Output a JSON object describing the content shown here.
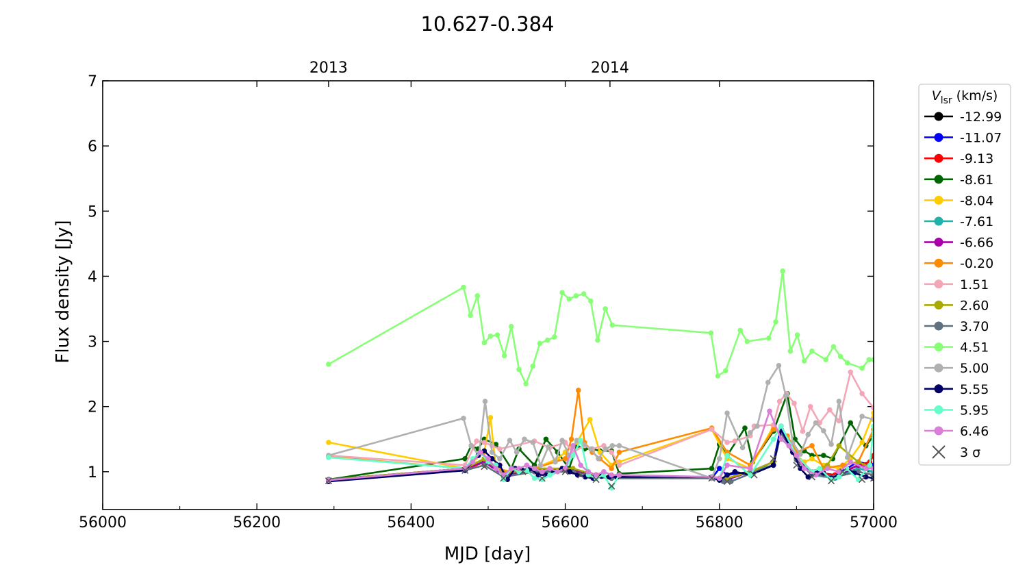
{
  "chart_data": {
    "type": "line",
    "title": "10.627-0.384",
    "xlabel": "MJD [day]",
    "ylabel": "Flux density [Jy]",
    "xlim": [
      56000,
      57000
    ],
    "ylim": [
      0.42,
      7
    ],
    "x_ticks": [
      56000,
      56200,
      56400,
      56600,
      56800,
      57000
    ],
    "x_tick_labels": [
      "56000",
      "56200",
      "56400",
      "56600",
      "56800",
      "57000"
    ],
    "y_ticks": [
      1,
      2,
      3,
      4,
      5,
      6,
      7
    ],
    "y_tick_labels": [
      "1",
      "2",
      "3",
      "4",
      "5",
      "6",
      "7"
    ],
    "top_axis_ticks": [
      {
        "x": 56293,
        "label": "2013"
      },
      {
        "x": 56658,
        "label": "2014"
      }
    ],
    "grid": false,
    "legend": {
      "placement": "outside-right",
      "title_main": "V",
      "title_sub": "lsr",
      "title_unit": "(km/s)",
      "sigma_label": "3 σ"
    },
    "series": [
      {
        "name": "-12.99",
        "color": "#000000",
        "x": [
          56293,
          56470,
          56495,
          56520,
          56560,
          56610,
          56640,
          56660,
          56790,
          56810,
          56840,
          56870,
          56880,
          56900,
          56920,
          56950,
          56980,
          57000
        ],
        "y": [
          0.88,
          1.05,
          1.15,
          0.95,
          1.02,
          1.0,
          0.95,
          0.92,
          0.92,
          0.88,
          1.0,
          1.1,
          1.65,
          1.2,
          0.98,
          0.92,
          1.05,
          1.0
        ]
      },
      {
        "name": "-11.07",
        "color": "#0000ff",
        "x": [
          56293,
          56470,
          56495,
          56520,
          56560,
          56610,
          56640,
          56660,
          56790,
          56800,
          56810,
          56840,
          56870,
          56880,
          56900,
          56920,
          56950,
          56980,
          57000
        ],
        "y": [
          0.87,
          1.05,
          1.2,
          0.95,
          1.05,
          1.0,
          0.95,
          0.92,
          0.9,
          1.05,
          0.95,
          1.0,
          1.15,
          1.7,
          1.25,
          1.0,
          0.95,
          1.15,
          1.1
        ]
      },
      {
        "name": "-9.13",
        "color": "#ff0000",
        "x": [
          56293,
          56470,
          56495,
          56520,
          56560,
          56610,
          56640,
          56660,
          56790,
          56810,
          56840,
          56870,
          56880,
          56900,
          56920,
          56950,
          56980,
          56995,
          57000
        ],
        "y": [
          0.87,
          1.03,
          1.15,
          0.95,
          1.0,
          1.0,
          0.95,
          0.92,
          0.9,
          0.9,
          1.0,
          1.1,
          1.6,
          1.2,
          1.0,
          0.95,
          1.1,
          1.15,
          1.25
        ]
      },
      {
        "name": "-8.61",
        "color": "#006400",
        "x": [
          56293,
          56470,
          56478,
          56487,
          56495,
          56510,
          56530,
          56540,
          56560,
          56575,
          56590,
          56605,
          56615,
          56625,
          56635,
          56645,
          56660,
          56670,
          56790,
          56800,
          56810,
          56833,
          56843,
          56870,
          56888,
          56898,
          56910,
          56920,
          56935,
          56947,
          56970,
          56990,
          57000
        ],
        "y": [
          0.88,
          1.2,
          1.4,
          1.35,
          1.5,
          1.42,
          1.05,
          1.35,
          1.1,
          1.5,
          1.3,
          1.05,
          1.4,
          1.35,
          1.35,
          1.32,
          1.32,
          0.97,
          1.05,
          1.42,
          1.25,
          1.67,
          1.15,
          1.62,
          2.2,
          1.5,
          1.32,
          1.25,
          1.25,
          1.2,
          1.75,
          1.4,
          1.55
        ]
      },
      {
        "name": "-8.04",
        "color": "#ffcc00",
        "x": [
          56293,
          56470,
          56495,
          56503,
          56510,
          56530,
          56560,
          56590,
          56600,
          56615,
          56632,
          56645,
          56660,
          56670,
          56790,
          56810,
          56840,
          56870,
          56888,
          56900,
          56910,
          56920,
          56935,
          56955,
          56970,
          56985,
          57000
        ],
        "y": [
          1.45,
          1.05,
          1.3,
          1.83,
          1.05,
          1.0,
          1.05,
          1.2,
          1.3,
          1.45,
          1.8,
          1.3,
          1.1,
          1.15,
          1.65,
          1.2,
          1.05,
          1.7,
          1.45,
          1.25,
          1.15,
          1.2,
          1.1,
          1.05,
          1.2,
          1.45,
          1.9
        ]
      },
      {
        "name": "-7.61",
        "color": "#20b2aa",
        "x": [
          56293,
          56470,
          56495,
          56520,
          56560,
          56610,
          56640,
          56660,
          56790,
          56810,
          56840,
          56870,
          56880,
          56900,
          56920,
          56950,
          56980,
          57000
        ],
        "y": [
          0.88,
          1.03,
          1.18,
          0.95,
          1.02,
          1.02,
          0.95,
          0.9,
          0.9,
          0.88,
          1.0,
          1.1,
          1.65,
          1.2,
          0.95,
          0.9,
          1.05,
          1.0
        ]
      },
      {
        "name": "-6.66",
        "color": "#aa00aa",
        "x": [
          56293,
          56470,
          56495,
          56520,
          56560,
          56610,
          56640,
          56660,
          56790,
          56810,
          56840,
          56870,
          56880,
          56900,
          56920,
          56950,
          56980,
          57000
        ],
        "y": [
          0.87,
          1.05,
          1.15,
          0.95,
          1.03,
          1.02,
          0.95,
          0.9,
          0.9,
          0.88,
          1.0,
          1.15,
          1.6,
          1.2,
          0.98,
          0.92,
          1.1,
          1.05
        ]
      },
      {
        "name": "-0.20",
        "color": "#ff8c00",
        "x": [
          56293,
          56470,
          56495,
          56520,
          56560,
          56600,
          56608,
          56617,
          56625,
          56635,
          56645,
          56660,
          56670,
          56790,
          56810,
          56840,
          56870,
          56888,
          56900,
          56920,
          56935,
          56960,
          56980,
          57000
        ],
        "y": [
          1.23,
          1.05,
          1.2,
          1.0,
          1.05,
          1.2,
          1.5,
          2.25,
          1.45,
          1.3,
          1.2,
          1.05,
          1.3,
          1.67,
          1.3,
          1.1,
          1.65,
          1.55,
          1.3,
          1.4,
          1.05,
          1.1,
          1.15,
          1.65
        ]
      },
      {
        "name": "1.51",
        "color": "#f4a6b7",
        "x": [
          56293,
          56470,
          56485,
          56495,
          56505,
          56515,
          56560,
          56580,
          56600,
          56610,
          56625,
          56635,
          56650,
          56660,
          56670,
          56790,
          56810,
          56820,
          56840,
          56845,
          56870,
          56878,
          56887,
          56897,
          56908,
          56918,
          56930,
          56943,
          56955,
          56970,
          56985,
          57000
        ],
        "y": [
          1.25,
          1.1,
          1.47,
          1.45,
          1.4,
          1.35,
          1.47,
          1.37,
          1.45,
          1.3,
          1.4,
          1.35,
          1.4,
          1.3,
          1.1,
          1.65,
          1.45,
          1.47,
          1.55,
          1.7,
          1.72,
          2.08,
          2.2,
          2.05,
          1.62,
          2.0,
          1.75,
          1.95,
          1.78,
          2.53,
          2.2,
          1.98
        ]
      },
      {
        "name": "2.60",
        "color": "#aaaa00",
        "x": [
          56293,
          56470,
          56495,
          56520,
          56560,
          56610,
          56640,
          56660,
          56790,
          56810,
          56840,
          56870,
          56880,
          56900,
          56920,
          56940,
          56955,
          56980,
          57000
        ],
        "y": [
          0.88,
          1.05,
          1.2,
          0.97,
          1.05,
          1.05,
          0.95,
          0.92,
          0.92,
          0.9,
          1.0,
          1.15,
          1.6,
          1.25,
          1.0,
          1.1,
          1.4,
          1.15,
          1.05
        ]
      },
      {
        "name": "3.70",
        "color": "#5f7080",
        "x": [
          56293,
          56470,
          56495,
          56520,
          56560,
          56610,
          56640,
          56660,
          56790,
          56805,
          56815,
          56840,
          56870,
          56880,
          56900,
          56920,
          56935,
          56950,
          56980,
          57000
        ],
        "y": [
          0.88,
          1.02,
          1.1,
          0.92,
          1.0,
          1.0,
          0.92,
          0.9,
          0.9,
          0.85,
          0.85,
          0.97,
          1.1,
          1.6,
          1.18,
          0.95,
          0.95,
          0.92,
          1.0,
          0.95
        ]
      },
      {
        "name": "4.51",
        "color": "#88ff77",
        "x": [
          56293,
          56468,
          56477,
          56486,
          56495,
          56503,
          56512,
          56521,
          56530,
          56540,
          56549,
          56558,
          56567,
          56577,
          56586,
          56596,
          56605,
          56614,
          56624,
          56633,
          56642,
          56652,
          56661,
          56789,
          56798,
          56808,
          56827,
          56836,
          56864,
          56873,
          56882,
          56892,
          56901,
          56910,
          56920,
          56938,
          56948,
          56957,
          56966,
          56985,
          56994,
          57000
        ],
        "y": [
          2.65,
          3.83,
          3.4,
          3.7,
          2.98,
          3.08,
          3.1,
          2.78,
          3.23,
          2.57,
          2.35,
          2.62,
          2.97,
          3.02,
          3.07,
          3.75,
          3.65,
          3.7,
          3.73,
          3.62,
          3.02,
          3.5,
          3.25,
          3.13,
          2.47,
          2.55,
          3.17,
          3.0,
          3.05,
          3.3,
          4.08,
          2.85,
          3.1,
          2.7,
          2.85,
          2.72,
          2.92,
          2.77,
          2.67,
          2.59,
          2.72,
          2.72
        ]
      },
      {
        "name": "5.00",
        "color": "#b0b0b0",
        "x": [
          56293,
          56468,
          56478,
          56488,
          56496,
          56505,
          56515,
          56528,
          56537,
          56547,
          56558,
          56568,
          56578,
          56587,
          56596,
          56605,
          56615,
          56624,
          56633,
          56643,
          56652,
          56661,
          56670,
          56790,
          56800,
          56810,
          56830,
          56840,
          56849,
          56863,
          56877,
          56886,
          56895,
          56905,
          56915,
          56925,
          56935,
          56945,
          56955,
          56966,
          56985,
          57000
        ],
        "y": [
          1.25,
          1.82,
          1.4,
          1.25,
          2.08,
          1.3,
          1.2,
          1.48,
          1.3,
          1.5,
          1.45,
          1.1,
          1.38,
          1.15,
          1.48,
          1.25,
          1.48,
          1.42,
          1.35,
          1.2,
          1.35,
          1.4,
          1.4,
          0.9,
          1.2,
          1.9,
          1.37,
          1.6,
          1.7,
          2.37,
          2.63,
          2.17,
          1.45,
          1.27,
          1.57,
          1.75,
          1.63,
          1.42,
          2.08,
          1.22,
          1.85,
          1.8
        ]
      },
      {
        "name": "5.55",
        "color": "#000066",
        "x": [
          56293,
          56470,
          56487,
          56495,
          56505,
          56515,
          56525,
          56535,
          56545,
          56555,
          56565,
          56575,
          56585,
          56596,
          56606,
          56616,
          56626,
          56636,
          56647,
          56657,
          56667,
          56790,
          56800,
          56810,
          56820,
          56840,
          56870,
          56880,
          56895,
          56905,
          56915,
          56925,
          56935,
          56945,
          56955,
          56965,
          56975,
          56990,
          57000
        ],
        "y": [
          0.85,
          1.02,
          1.25,
          1.32,
          1.2,
          1.1,
          0.88,
          1.05,
          1.02,
          1.05,
          0.95,
          0.95,
          1.0,
          1.05,
          1.0,
          0.95,
          0.92,
          0.9,
          0.93,
          0.92,
          0.92,
          0.92,
          0.87,
          0.95,
          1.0,
          0.95,
          1.1,
          1.65,
          1.3,
          1.05,
          0.92,
          1.0,
          0.98,
          0.9,
          0.95,
          1.05,
          0.98,
          0.92,
          0.9
        ]
      },
      {
        "name": "5.95",
        "color": "#66ffcc",
        "x": [
          56293,
          56470,
          56480,
          56490,
          56500,
          56510,
          56520,
          56530,
          56540,
          56550,
          56560,
          56570,
          56580,
          56590,
          56600,
          56610,
          56620,
          56630,
          56640,
          56650,
          56660,
          56670,
          56790,
          56800,
          56810,
          56840,
          56870,
          56880,
          56900,
          56920,
          56930,
          56945,
          56955,
          56965,
          56980,
          56995,
          57000
        ],
        "y": [
          1.22,
          1.05,
          1.2,
          1.3,
          1.15,
          1.1,
          0.88,
          1.05,
          1.0,
          1.02,
          0.9,
          0.88,
          0.95,
          1.0,
          1.05,
          1.25,
          1.48,
          0.95,
          0.9,
          0.95,
          0.75,
          0.95,
          0.92,
          0.9,
          1.25,
          0.95,
          1.5,
          1.7,
          1.25,
          1.0,
          1.05,
          0.88,
          0.92,
          1.05,
          0.88,
          1.1,
          1.7
        ]
      },
      {
        "name": "6.46",
        "color": "#da7fd8",
        "x": [
          56293,
          56470,
          56480,
          56490,
          56500,
          56510,
          56520,
          56530,
          56540,
          56550,
          56560,
          56570,
          56580,
          56590,
          56600,
          56610,
          56620,
          56630,
          56640,
          56650,
          56660,
          56670,
          56790,
          56800,
          56810,
          56840,
          56865,
          56880,
          56890,
          56900,
          56910,
          56925,
          56940,
          56955,
          56970,
          56990,
          57000
        ],
        "y": [
          0.87,
          1.05,
          1.15,
          1.3,
          1.2,
          1.05,
          0.95,
          1.05,
          1.05,
          1.1,
          1.05,
          1.0,
          1.05,
          1.0,
          1.05,
          1.4,
          1.1,
          1.0,
          0.95,
          1.0,
          0.95,
          0.95,
          0.92,
          0.9,
          1.1,
          1.05,
          1.93,
          1.5,
          1.4,
          1.25,
          1.05,
          0.95,
          1.05,
          1.0,
          1.15,
          1.05,
          1.05
        ]
      }
    ],
    "sigma_3": {
      "x": [
        56293,
        56470,
        56495,
        56520,
        56545,
        56570,
        56600,
        56620,
        56640,
        56660,
        56790,
        56810,
        56845,
        56870,
        56900,
        56920,
        56945,
        56960,
        56985,
        57000
      ],
      "y": [
        0.86,
        1.02,
        1.08,
        0.9,
        1.0,
        0.9,
        1.0,
        0.95,
        0.88,
        0.78,
        0.9,
        0.85,
        0.95,
        1.2,
        1.1,
        0.92,
        0.86,
        1.0,
        0.88,
        0.9
      ]
    }
  }
}
